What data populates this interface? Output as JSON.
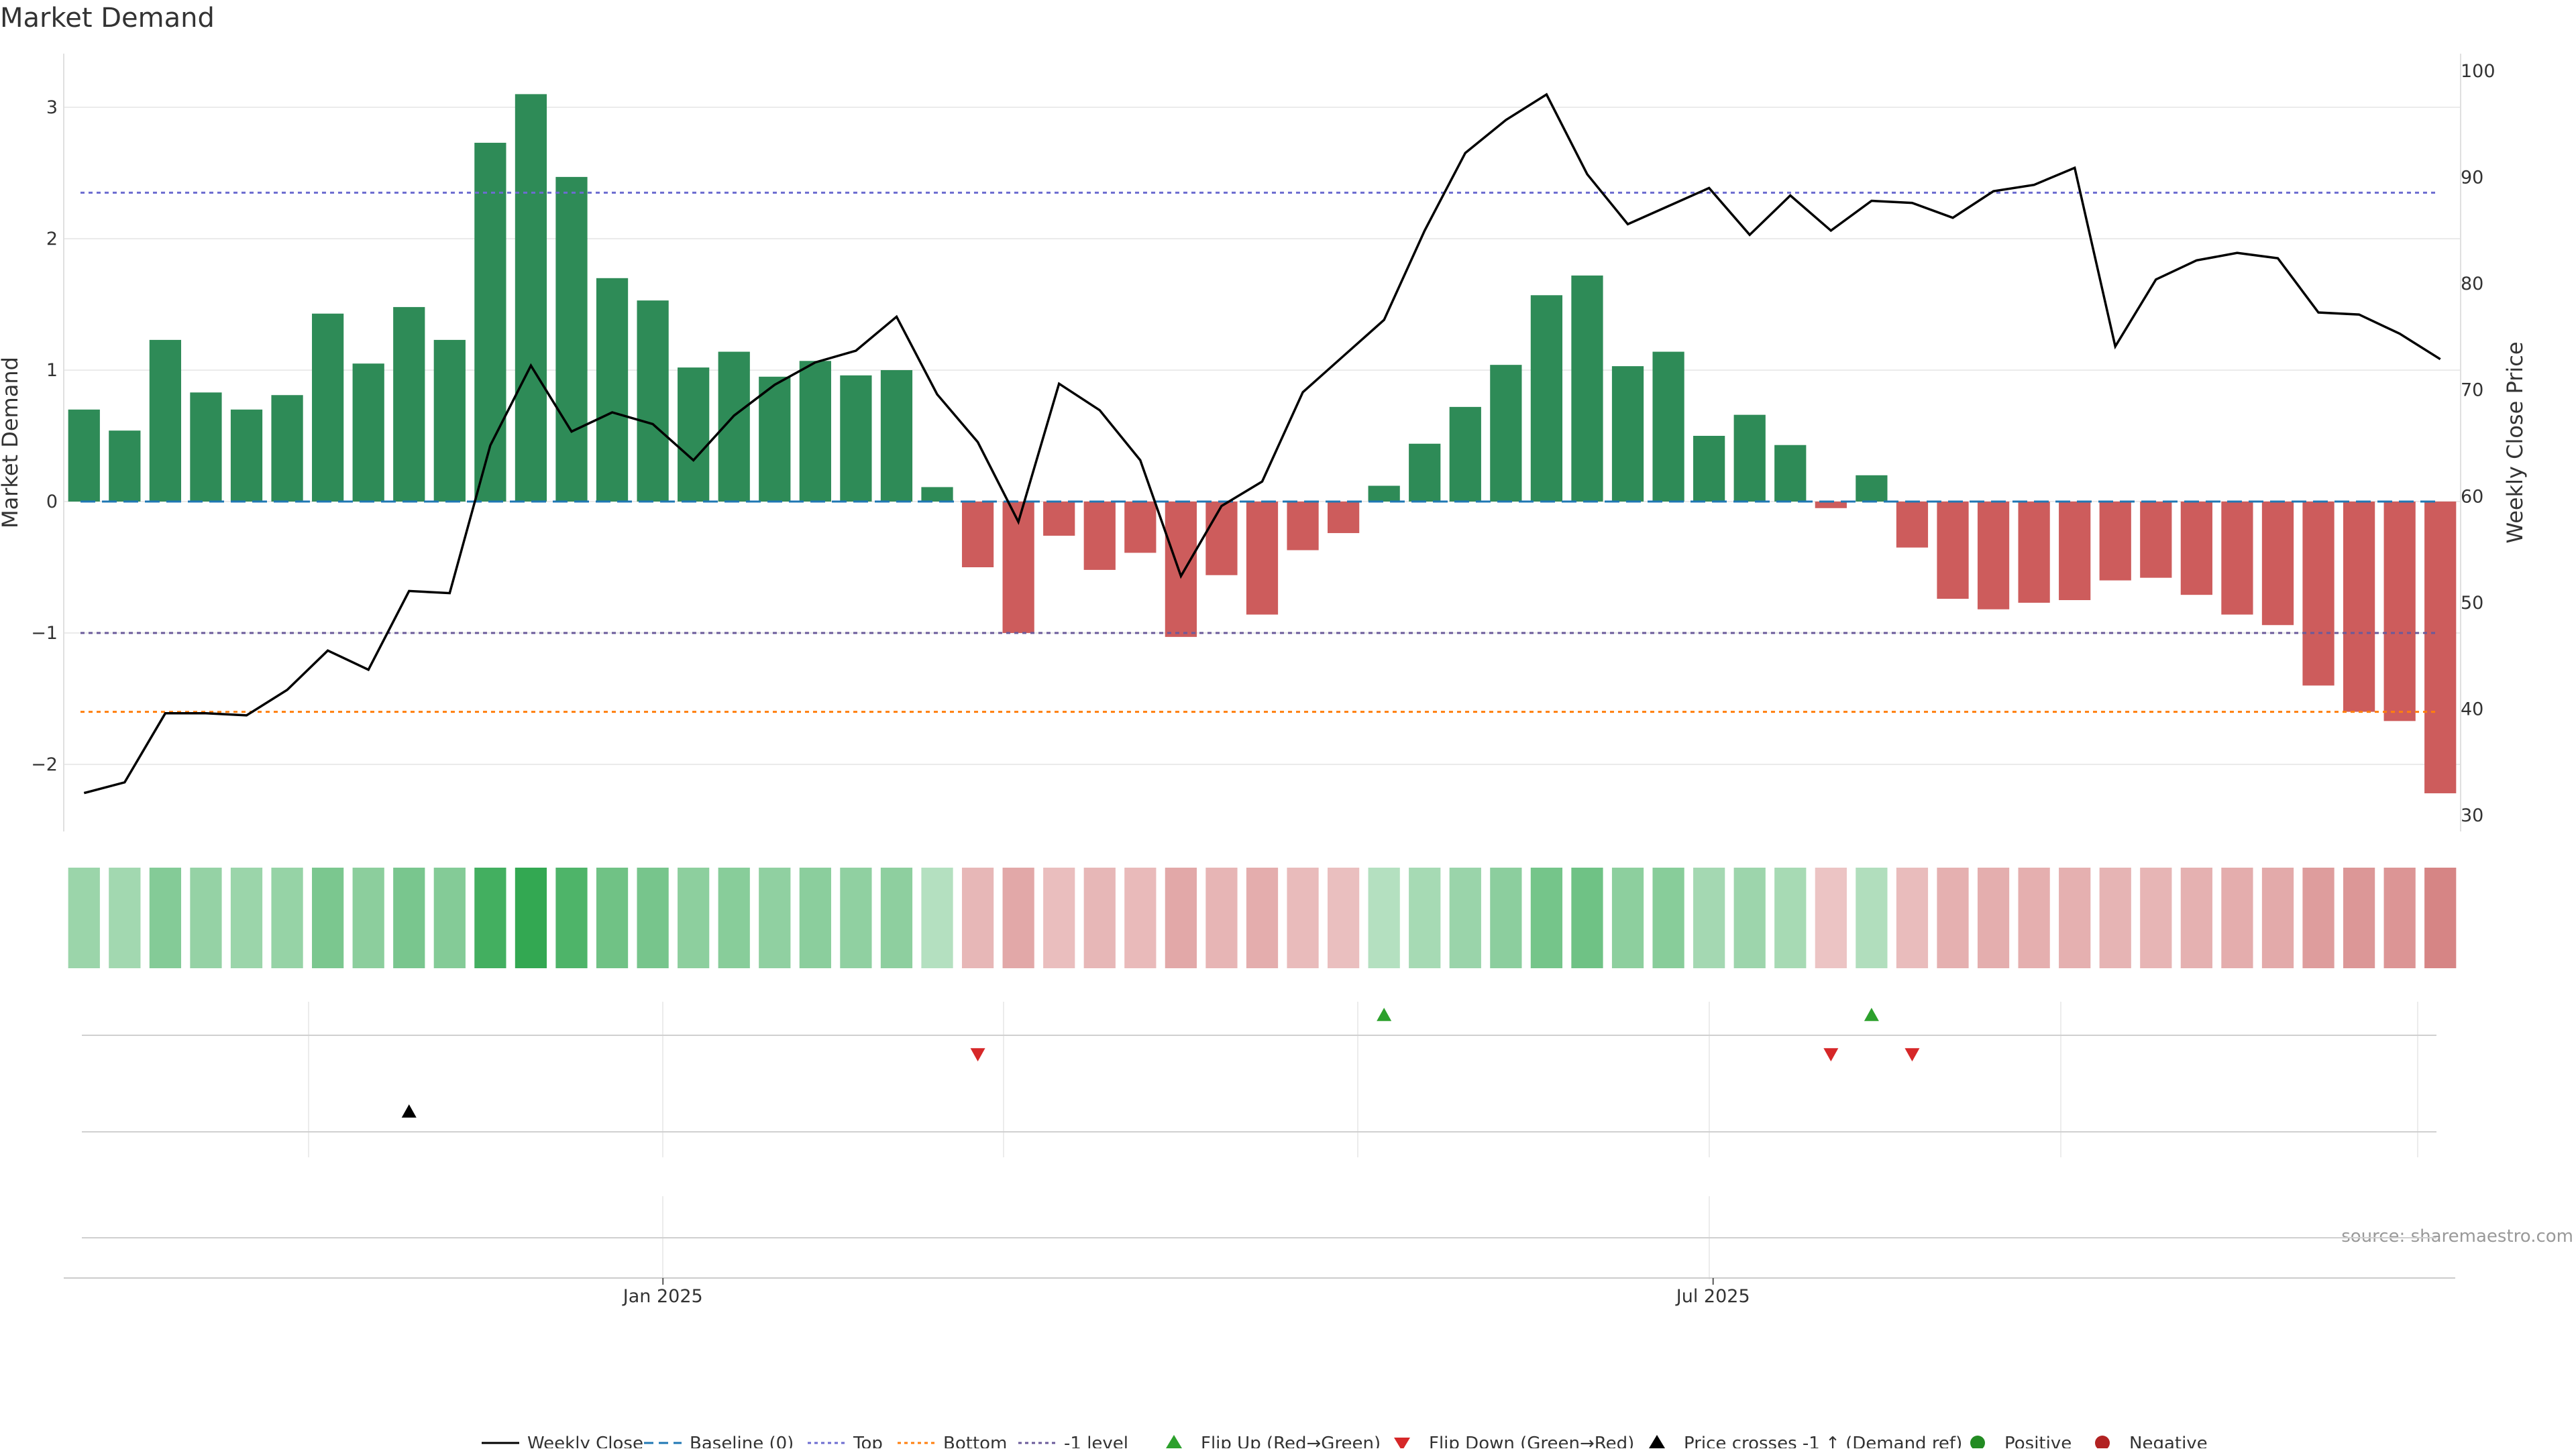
{
  "chart_data": {
    "type": "bar",
    "title": "Market Demand",
    "ylabel": "Market Demand",
    "ylabel_right": "Weekly Close Price",
    "ylim": [
      -2.5,
      3.35
    ],
    "ylim_right": [
      30,
      100
    ],
    "yticks": [
      {
        "v": 3,
        "label": "3"
      },
      {
        "v": 2,
        "label": "2"
      },
      {
        "v": 1,
        "label": "1"
      },
      {
        "v": 0,
        "label": "0"
      },
      {
        "v": -1,
        "label": "−1"
      },
      {
        "v": -2,
        "label": "−2"
      }
    ],
    "yticks_right": [
      100,
      90,
      80,
      70,
      60,
      50,
      40,
      30
    ],
    "xticks": [
      {
        "label": "Jan 2025",
        "index": 14.75
      },
      {
        "label": "Jul 2025",
        "index": 40.6
      }
    ],
    "demand": [
      0.7,
      0.54,
      1.23,
      0.83,
      0.7,
      0.81,
      1.43,
      1.05,
      1.48,
      1.23,
      2.73,
      3.1,
      2.47,
      1.7,
      1.53,
      1.02,
      1.14,
      0.95,
      1.07,
      0.96,
      1.0,
      0.11,
      -0.5,
      -1.0,
      -0.26,
      -0.52,
      -0.39,
      -1.03,
      -0.56,
      -0.86,
      -0.37,
      -0.24,
      0.12,
      0.44,
      0.72,
      1.04,
      1.57,
      1.72,
      1.03,
      1.14,
      0.5,
      0.66,
      0.43,
      -0.05,
      0.2,
      -0.35,
      -0.74,
      -0.82,
      -0.77,
      -0.75,
      -0.6,
      -0.58,
      -0.71,
      -0.86,
      -0.94,
      -1.4,
      -1.6,
      -1.67,
      -2.22
    ],
    "weekly_close": [
      32.1,
      33.1,
      39.6,
      39.6,
      39.4,
      41.8,
      45.5,
      43.7,
      51.1,
      50.9,
      64.8,
      72.3,
      66.1,
      67.9,
      66.8,
      63.4,
      67.6,
      70.5,
      72.6,
      73.7,
      76.9,
      69.6,
      65.1,
      57.6,
      70.6,
      68.1,
      63.4,
      52.5,
      59.1,
      61.4,
      69.8,
      73.2,
      76.6,
      85.0,
      92.3,
      95.4,
      97.8,
      90.3,
      85.6,
      87.3,
      89.0,
      84.6,
      88.3,
      85.0,
      87.8,
      87.6,
      86.2,
      88.7,
      89.3,
      90.9,
      74.1,
      80.4,
      82.2,
      82.9,
      82.4,
      77.3,
      77.1,
      75.3,
      72.9
    ],
    "reference_lines": [
      {
        "name": "Baseline (0)",
        "value": 0,
        "color": "#1f77b4",
        "dash": "dashed"
      },
      {
        "name": "Top",
        "value": 2.35,
        "color": "#6c6cd0",
        "dash": "dotted"
      },
      {
        "name": "Bottom",
        "value": -1.6,
        "color": "#ff7f0e",
        "dash": "dotted"
      },
      {
        "name": "-1 level",
        "value": -1,
        "color": "#6a5a9a",
        "dash": "dotted"
      }
    ],
    "flip_up": [
      32,
      44
    ],
    "flip_down": [
      22,
      43,
      45
    ],
    "price_cross": [
      8
    ],
    "colors": {
      "positive": "#2e8b57",
      "negative": "#cd5c5c",
      "price": "#000000",
      "flip_up": "#2ca02c",
      "flip_down": "#d62728",
      "legend_positive": "#228b22",
      "legend_negative": "#b22222"
    },
    "legend": [
      {
        "label": "Weekly Close",
        "marker": "line-solid"
      },
      {
        "label": "Baseline (0)",
        "marker": "line-dashed"
      },
      {
        "label": "Top",
        "marker": "line-dotted-top"
      },
      {
        "label": "Bottom",
        "marker": "line-dotted-bottom"
      },
      {
        "label": "-1 level",
        "marker": "line-dotted-minus1"
      },
      {
        "label": "Flip Up (Red→Green)",
        "marker": "triangle-up-green"
      },
      {
        "label": "Flip Down (Green→Red)",
        "marker": "triangle-down-red"
      },
      {
        "label": "Price crosses -1 ↑ (Demand ref)",
        "marker": "triangle-up-black"
      },
      {
        "label": "Positive",
        "marker": "dot-green"
      },
      {
        "label": "Negative",
        "marker": "dot-red"
      }
    ],
    "legend_placement": "bottom-center",
    "grid": true
  },
  "source": "source: sharemaestro.com"
}
